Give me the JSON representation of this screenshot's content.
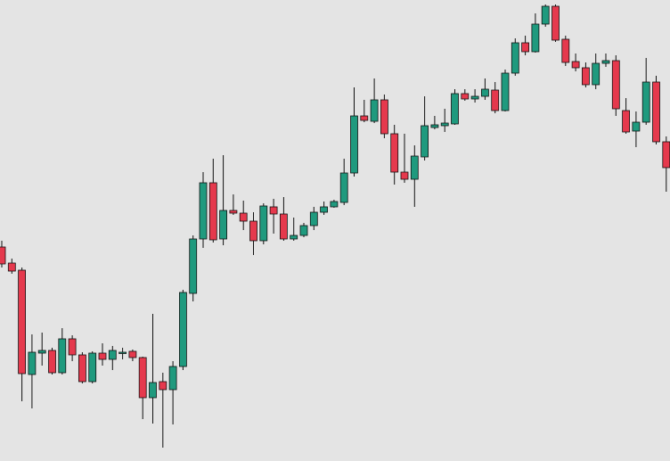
{
  "chart_data": {
    "type": "candlestick",
    "up_color": "#1f9a7e",
    "down_color": "#e5394d",
    "wick_color": "#111111",
    "ylim": [
      0,
      517
    ],
    "open": [
      240,
      222,
      214,
      97,
      121,
      124,
      99,
      137,
      119,
      89,
      121,
      114,
      121,
      123,
      116,
      71,
      89,
      80,
      106,
      188,
      249,
      312,
      249,
      281,
      278,
      269,
      247,
      285,
      277,
      249,
      253,
      264,
      279,
      285,
      290,
      323,
      387,
      381,
      405,
      367,
      324,
      316,
      341,
      374,
      376,
      378,
      412,
      406,
      409,
      416,
      393,
      435,
      469,
      459,
      490,
      510,
      473,
      448,
      441,
      422,
      446,
      449,
      393,
      370,
      380,
      425,
      358
    ],
    "high": [
      247,
      227,
      217,
      142,
      144,
      127,
      149,
      141,
      122,
      123,
      132,
      129,
      127,
      125,
      117,
      165,
      99,
      112,
      192,
      253,
      324,
      339,
      343,
      299,
      292,
      279,
      289,
      294,
      296,
      273,
      267,
      285,
      291,
      293,
      339,
      419,
      405,
      429,
      411,
      377,
      367,
      354,
      409,
      387,
      395,
      417,
      417,
      417,
      429,
      425,
      439,
      474,
      477,
      502,
      512,
      512,
      477,
      457,
      447,
      457,
      457,
      455,
      407,
      392,
      452,
      432,
      364
    ],
    "low": [
      217,
      210,
      67,
      59,
      107,
      97,
      97,
      112,
      87,
      87,
      107,
      102,
      114,
      112,
      47,
      42,
      15,
      41,
      102,
      179,
      239,
      245,
      242,
      276,
      259,
      231,
      243,
      255,
      247,
      247,
      251,
      259,
      276,
      284,
      287,
      319,
      380,
      379,
      362,
      310,
      312,
      285,
      337,
      372,
      369,
      377,
      404,
      402,
      405,
      390,
      392,
      432,
      455,
      458,
      487,
      470,
      443,
      437,
      419,
      417,
      442,
      387,
      367,
      352,
      377,
      355,
      302
    ],
    "close": [
      221,
      213,
      98,
      122,
      124,
      99,
      137,
      119,
      89,
      121,
      114,
      124,
      122,
      116,
      71,
      88,
      80,
      106,
      189,
      249,
      312,
      248,
      281,
      278,
      269,
      247,
      286,
      277,
      249,
      253,
      264,
      279,
      285,
      291,
      323,
      387,
      382,
      405,
      367,
      324,
      316,
      342,
      376,
      377,
      379,
      412,
      406,
      409,
      417,
      393,
      435,
      469,
      459,
      490,
      510,
      472,
      447,
      441,
      422,
      446,
      449,
      395,
      369,
      380,
      425,
      358,
      329
    ]
  }
}
